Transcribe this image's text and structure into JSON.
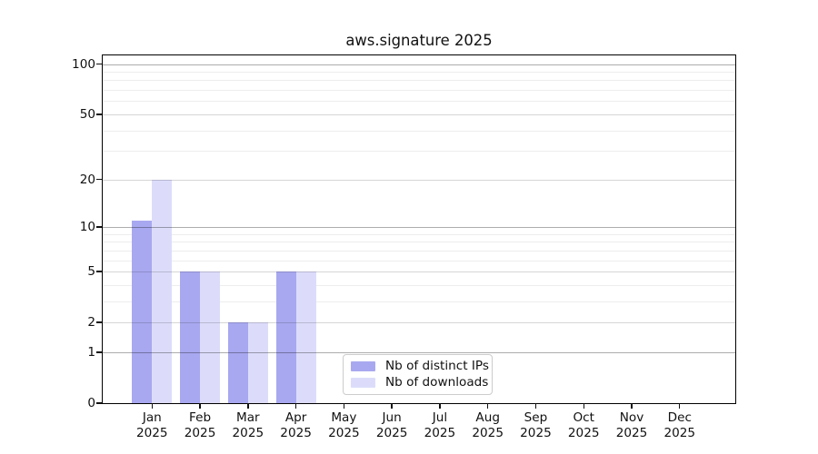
{
  "chart_data": {
    "type": "bar",
    "title": "aws.signature 2025",
    "categories": [
      "Jan",
      "Feb",
      "Mar",
      "Apr",
      "May",
      "Jun",
      "Jul",
      "Aug",
      "Sep",
      "Oct",
      "Nov",
      "Dec"
    ],
    "x_tick_second_line": "2025",
    "series": [
      {
        "name": "Nb of distinct IPs",
        "color": "#a8a8f0",
        "values": [
          11,
          5,
          2,
          5,
          0,
          0,
          0,
          0,
          0,
          0,
          0,
          0
        ]
      },
      {
        "name": "Nb of downloads",
        "color": "#dcdcfa",
        "values": [
          20,
          5,
          2,
          5,
          0,
          0,
          0,
          0,
          0,
          0,
          0,
          0
        ]
      }
    ],
    "y_scale": "log1p",
    "y_ticks": [
      0,
      1,
      2,
      5,
      10,
      20,
      50,
      100
    ],
    "y_minor_ticks": [
      3,
      4,
      6,
      7,
      8,
      9,
      30,
      40,
      60,
      70,
      80,
      90
    ],
    "ylim": [
      0,
      114
    ],
    "xlabel": "",
    "ylabel": "",
    "grid": true,
    "legend_position": "bottom-center"
  },
  "colors": {
    "bar_distinct_ips": "#a8a8f0",
    "bar_downloads": "#dcdcfa",
    "grid_decade": "rgba(0,0,0,0.32)",
    "grid_mid": "rgba(0,0,0,0.16)",
    "grid_minor": "rgba(0,0,0,0.07)",
    "spine": "#000000",
    "tick": "#111111",
    "text": "#111111",
    "legend_border": "#cccccc"
  }
}
